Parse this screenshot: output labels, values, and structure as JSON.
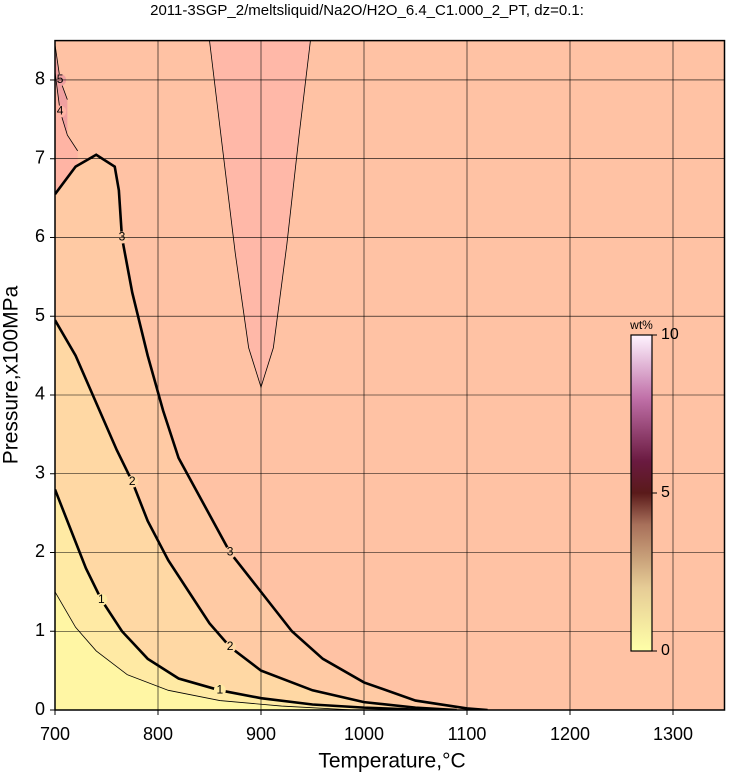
{
  "chart_data": {
    "type": "contour",
    "title": "2011-3SGP_2/meltsliquid/Na2O/H2O_6.4_C1.000_2_PT, dz=0.1:",
    "x_label": "Temperature,°C",
    "y_label": "Pressure,x100MPa",
    "xlim": [
      700,
      1350
    ],
    "ylim": [
      0,
      8.5
    ],
    "xticks": [
      700,
      800,
      900,
      1000,
      1100,
      1200,
      1300
    ],
    "yticks": [
      0,
      1,
      2,
      3,
      4,
      5,
      6,
      7,
      8
    ],
    "grid": true,
    "background": "#ffc2a4",
    "contours": [
      {
        "level": 5,
        "bold": false,
        "labeled": true,
        "fill": "#f0a0a0",
        "x": [
          700,
          705,
          712
        ],
        "y": [
          8.45,
          8.0,
          7.75
        ]
      },
      {
        "level": 4,
        "bold": false,
        "labeled": true,
        "fill": "#ffb4a4",
        "x": [
          700,
          705,
          712,
          722
        ],
        "y": [
          8.1,
          7.6,
          7.3,
          7.1
        ]
      },
      {
        "level": 3,
        "bold": true,
        "labeled": true,
        "fill": "#ffcaa4",
        "x": [
          700,
          720,
          740,
          758,
          762,
          765,
          775,
          790,
          805,
          820,
          845,
          870,
          900,
          930,
          960,
          1000,
          1050,
          1100,
          1120
        ],
        "y": [
          6.55,
          6.9,
          7.05,
          6.9,
          6.6,
          6.0,
          5.3,
          4.5,
          3.8,
          3.2,
          2.6,
          2.0,
          1.5,
          1.0,
          0.65,
          0.35,
          0.12,
          0.02,
          0
        ]
      },
      {
        "level": 2,
        "bold": true,
        "labeled": true,
        "fill": "#ffd8a4",
        "x": [
          700,
          720,
          740,
          760,
          775,
          790,
          810,
          830,
          850,
          870,
          900,
          950,
          1000,
          1050,
          1090
        ],
        "y": [
          4.95,
          4.5,
          3.9,
          3.3,
          2.9,
          2.4,
          1.9,
          1.5,
          1.1,
          0.8,
          0.5,
          0.25,
          0.1,
          0.03,
          0
        ]
      },
      {
        "level": 1,
        "bold": true,
        "labeled": true,
        "fill": "#ffeaa4",
        "x": [
          700,
          715,
          730,
          745,
          765,
          790,
          820,
          860,
          900,
          950,
          1000,
          1060
        ],
        "y": [
          2.8,
          2.3,
          1.8,
          1.4,
          1.0,
          0.65,
          0.4,
          0.25,
          0.15,
          0.07,
          0.03,
          0
        ]
      },
      {
        "level": 0.5,
        "bold": false,
        "labeled": false,
        "fill": "#fff6a4",
        "x": [
          700,
          720,
          740,
          770,
          810,
          860,
          920,
          990
        ],
        "y": [
          1.5,
          1.05,
          0.75,
          0.45,
          0.25,
          0.12,
          0.05,
          0
        ]
      },
      {
        "level": 3.4,
        "bold": false,
        "labeled": false,
        "fill": "#ffb8a8",
        "x": [
          850,
          862,
          875,
          888,
          900,
          912,
          925,
          937,
          948
        ],
        "y": [
          8.5,
          7.2,
          5.8,
          4.6,
          4.1,
          4.6,
          5.9,
          7.3,
          8.5
        ]
      }
    ],
    "colorbar": {
      "label": "wt%",
      "clim": [
        0,
        10
      ],
      "ticks": [
        0,
        5,
        10
      ],
      "stops": [
        {
          "value": 0,
          "color": "#ffffa8"
        },
        {
          "value": 2,
          "color": "#e6cc96"
        },
        {
          "value": 4,
          "color": "#a8705a"
        },
        {
          "value": 5,
          "color": "#5a1a1a"
        },
        {
          "value": 6,
          "color": "#6a1a40"
        },
        {
          "value": 8,
          "color": "#c070a8"
        },
        {
          "value": 10,
          "color": "#fff4ff"
        }
      ]
    }
  }
}
